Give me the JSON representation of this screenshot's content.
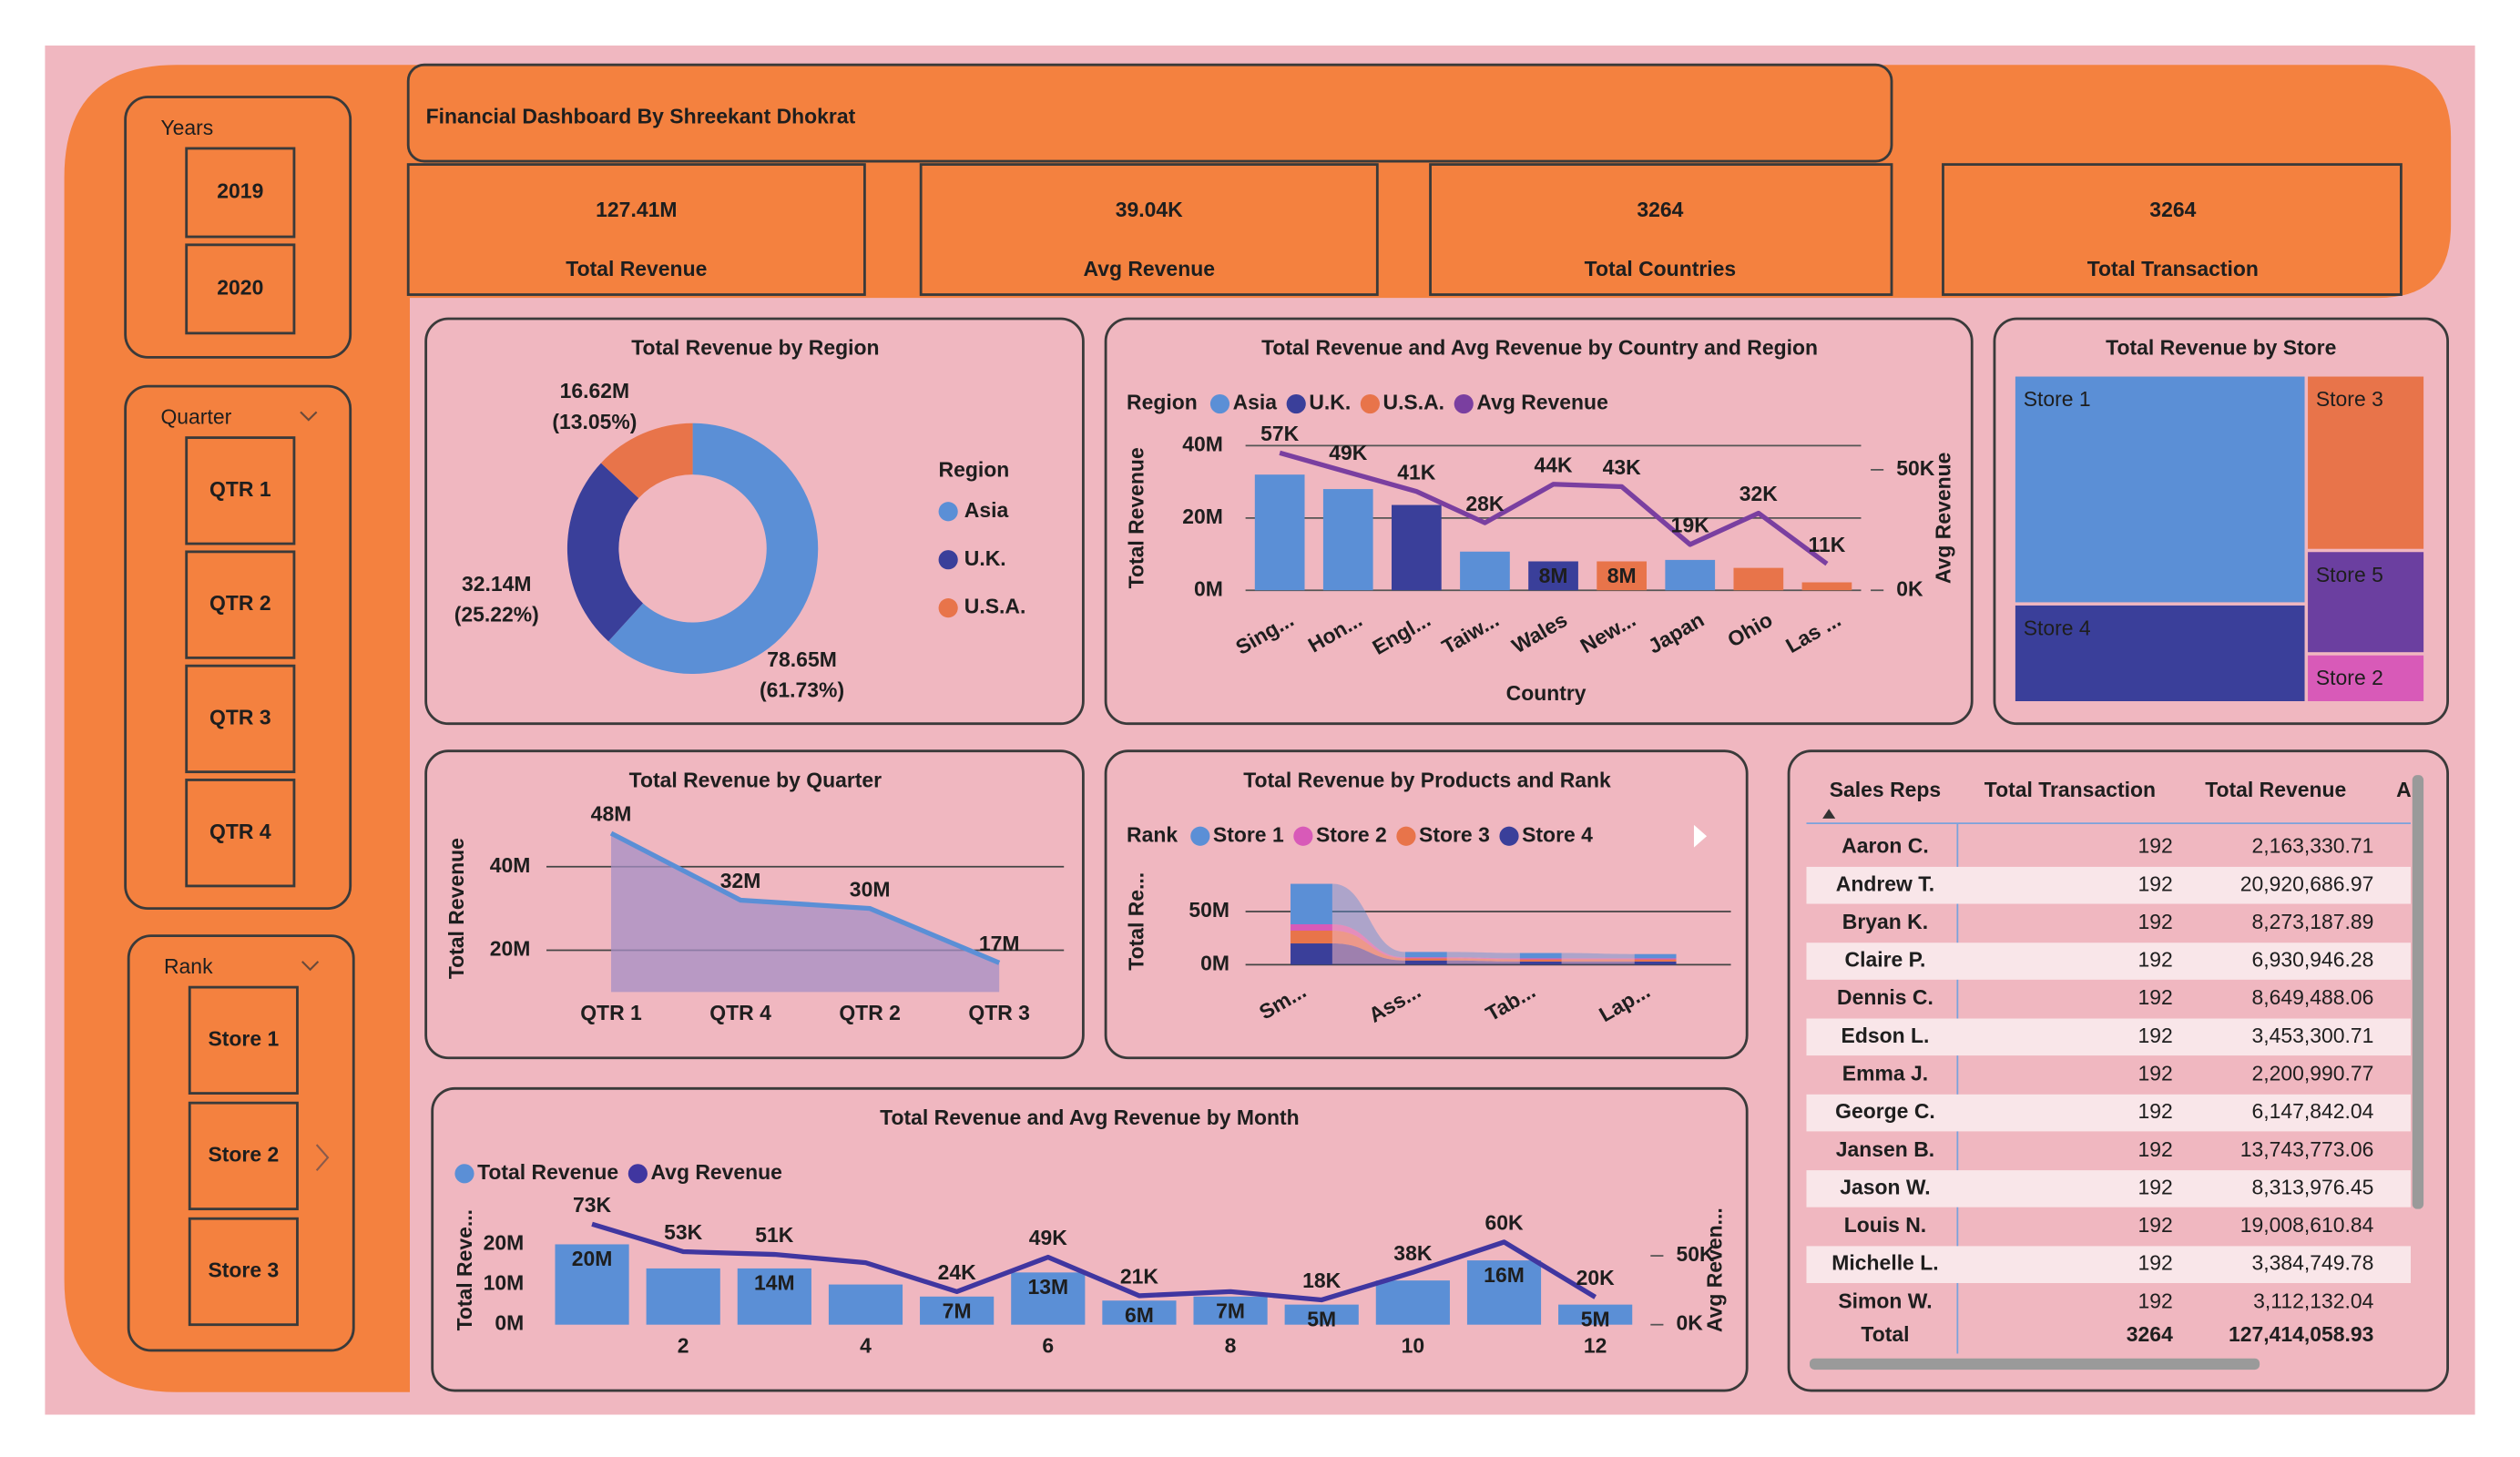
{
  "header": {
    "title": "Financial Dashboard By Shreekant Dhokrat"
  },
  "slicers": [
    {
      "title": "Years",
      "items": [
        "2019",
        "2020"
      ]
    },
    {
      "title": "Quarter",
      "items": [
        "QTR 1",
        "QTR 2",
        "QTR 3",
        "QTR 4"
      ]
    },
    {
      "title": "Rank",
      "items": [
        "Store 1",
        "Store 2",
        "Store 3"
      ]
    }
  ],
  "kpis": [
    {
      "value": "127.41M",
      "label": "Total Revenue"
    },
    {
      "value": "39.04K",
      "label": "Avg Revenue"
    },
    {
      "value": "3264",
      "label": "Total Countries"
    },
    {
      "value": "3264",
      "label": "Total Transaction"
    }
  ],
  "chart_data": [
    {
      "type": "donut",
      "title": "Total Revenue by Region",
      "legend_title": "Region",
      "categories": [
        "Asia",
        "U.K.",
        "U.S.A."
      ],
      "colors": [
        "#5b8fd6",
        "#3a3f9a",
        "#e8744a"
      ],
      "values": [
        78650000,
        32140000,
        16620000
      ],
      "value_labels": [
        "78.65M",
        "32.14M",
        "16.62M"
      ],
      "percents": [
        61.73,
        25.22,
        13.05
      ],
      "percent_labels": [
        "(61.73%)",
        "(25.22%)",
        "(13.05%)"
      ]
    },
    {
      "type": "combo",
      "title": "Total Revenue and Avg Revenue by Country and Region",
      "legend_title": "Region",
      "x_label": "Country",
      "y_label": "Total Revenue",
      "y2_label": "Avg Revenue",
      "categories": [
        "Sing...",
        "Hon...",
        "Engl...",
        "Taiw...",
        "Wales",
        "New...",
        "Japan",
        "Ohio",
        "Las ..."
      ],
      "series": [
        {
          "name": "Asia",
          "color": "#5b8fd6",
          "values": [
            32000000,
            28000000,
            null,
            10700000,
            null,
            null,
            8400000,
            null,
            null
          ]
        },
        {
          "name": "U.K.",
          "color": "#3a3f9a",
          "values": [
            null,
            null,
            23600000,
            null,
            8000000,
            null,
            null,
            null,
            null
          ],
          "value_labels": [
            null,
            null,
            null,
            null,
            "8M",
            null,
            null,
            null,
            null
          ]
        },
        {
          "name": "U.S.A.",
          "color": "#e8744a",
          "values": [
            null,
            null,
            null,
            null,
            null,
            8000000,
            null,
            6200000,
            2200000
          ],
          "value_labels": [
            null,
            null,
            null,
            null,
            null,
            "8M",
            null,
            null,
            null
          ]
        },
        {
          "name": "Avg Revenue",
          "color": "#7a3fa0",
          "type": "line",
          "axis": "y2",
          "values": [
            57000,
            49000,
            41000,
            28000,
            44000,
            43000,
            19000,
            32000,
            11000
          ],
          "value_labels": [
            "57K",
            "49K",
            "41K",
            "28K",
            "44K",
            "43K",
            "19K",
            "32K",
            "11K"
          ]
        }
      ],
      "ylim": [
        0,
        40000000
      ],
      "yticks": [
        {
          "value": 0,
          "label": "0M"
        },
        {
          "value": 20000000,
          "label": "20M"
        },
        {
          "value": 40000000,
          "label": "40M"
        }
      ],
      "y2lim": [
        0,
        60000
      ],
      "y2ticks": [
        {
          "value": 0,
          "label": "0K"
        },
        {
          "value": 50000,
          "label": "50K"
        }
      ],
      "grid": true
    },
    {
      "type": "treemap",
      "title": "Total Revenue by Store",
      "categories": [
        "Store 1",
        "Store 4",
        "Store 3",
        "Store 5",
        "Store 2"
      ],
      "colors": [
        "#5b8fd6",
        "#3a3f9a",
        "#e8744a",
        "#6b3fa0",
        "#d85ab8"
      ],
      "values": [
        63200000,
        27300000,
        19700000,
        11600000,
        5500000
      ]
    },
    {
      "type": "area",
      "title": "Total Revenue by Quarter",
      "y_label": "Total Revenue",
      "categories": [
        "QTR 1",
        "QTR 4",
        "QTR 2",
        "QTR 3"
      ],
      "values": [
        48000000,
        32000000,
        30000000,
        17000000
      ],
      "value_labels": [
        "48M",
        "32M",
        "30M",
        "17M"
      ],
      "color": "#5b8fd6",
      "fill": "#a58fc6",
      "ylim": [
        10000000,
        50000000
      ],
      "yticks": [
        {
          "value": 20000000,
          "label": "20M"
        },
        {
          "value": 40000000,
          "label": "40M"
        }
      ],
      "grid": true
    },
    {
      "type": "ribbon",
      "title": "Total Revenue by Products and Rank",
      "legend_title": "Rank",
      "y_label": "Total Re...",
      "categories": [
        "Sm...",
        "Ass...",
        "Tab...",
        "Lap..."
      ],
      "series": [
        {
          "name": "Store 1",
          "color": "#5b8fd6",
          "values": [
            38000000,
            5000000,
            5000000,
            4000000
          ]
        },
        {
          "name": "Store 2",
          "color": "#d85ab8",
          "values": [
            6000000,
            1000000,
            1000000,
            1000000
          ]
        },
        {
          "name": "Store 3",
          "color": "#e8744a",
          "values": [
            12000000,
            2000000,
            2000000,
            2000000
          ]
        },
        {
          "name": "Store 4",
          "color": "#3a3f9a",
          "values": [
            20000000,
            4000000,
            3000000,
            3000000
          ]
        }
      ],
      "ylim": [
        0,
        80000000
      ],
      "yticks": [
        {
          "value": 0,
          "label": "0M"
        },
        {
          "value": 50000000,
          "label": "50M"
        }
      ],
      "grid": true
    },
    {
      "type": "combo",
      "title": "Total Revenue and Avg Revenue by Month",
      "y_label": "Total Reve...",
      "y2_label": "Avg Reven...",
      "x": [
        1,
        2,
        3,
        4,
        5,
        6,
        7,
        8,
        9,
        10,
        11,
        12
      ],
      "xlim": [
        0.5,
        12.5
      ],
      "xticks": [
        2,
        4,
        6,
        8,
        10,
        12
      ],
      "series": [
        {
          "name": "Total Revenue",
          "color": "#5b8fd6",
          "values": [
            20000000,
            14000000,
            14000000,
            10000000,
            7000000,
            13000000,
            6000000,
            7000000,
            5000000,
            11000000,
            16000000,
            5000000
          ],
          "value_labels": [
            "20M",
            null,
            "14M",
            null,
            "7M",
            "13M",
            "6M",
            "7M",
            "5M",
            null,
            "16M",
            "5M"
          ]
        },
        {
          "name": "Avg Revenue",
          "color": "#4036a0",
          "type": "line",
          "axis": "y2",
          "values": [
            73000,
            53000,
            51000,
            45000,
            24000,
            49000,
            21000,
            24000,
            18000,
            38000,
            60000,
            20000
          ],
          "value_labels": [
            "73K",
            "53K",
            "51K",
            null,
            "24K",
            "49K",
            "21K",
            null,
            "18K",
            "38K",
            "60K",
            "20K"
          ]
        }
      ],
      "ylim": [
        0,
        24000000
      ],
      "yticks": [
        {
          "value": 0,
          "label": "0M"
        },
        {
          "value": 10000000,
          "label": "10M"
        },
        {
          "value": 20000000,
          "label": "20M"
        }
      ],
      "y2lim": [
        0,
        70000
      ],
      "y2ticks": [
        {
          "value": 0,
          "label": "0K"
        },
        {
          "value": 50000,
          "label": "50K"
        }
      ],
      "grid": false
    }
  ],
  "table": {
    "columns": [
      "Sales Reps",
      "Total Transaction",
      "Total Revenue",
      "A"
    ],
    "rows": [
      [
        "Aaron C.",
        "192",
        "2,163,330.71"
      ],
      [
        "Andrew T.",
        "192",
        "20,920,686.97"
      ],
      [
        "Bryan K.",
        "192",
        "8,273,187.89"
      ],
      [
        "Claire P.",
        "192",
        "6,930,946.28"
      ],
      [
        "Dennis C.",
        "192",
        "8,649,488.06"
      ],
      [
        "Edson L.",
        "192",
        "3,453,300.71"
      ],
      [
        "Emma J.",
        "192",
        "2,200,990.77"
      ],
      [
        "George C.",
        "192",
        "6,147,842.04"
      ],
      [
        "Jansen B.",
        "192",
        "13,743,773.06"
      ],
      [
        "Jason W.",
        "192",
        "8,313,976.45"
      ],
      [
        "Louis N.",
        "192",
        "19,008,610.84"
      ],
      [
        "Michelle L.",
        "192",
        "3,384,749.78"
      ],
      [
        "Simon W.",
        "192",
        "3,112,132.04"
      ]
    ],
    "total": [
      "Total",
      "3264",
      "127,414,058.93"
    ]
  }
}
